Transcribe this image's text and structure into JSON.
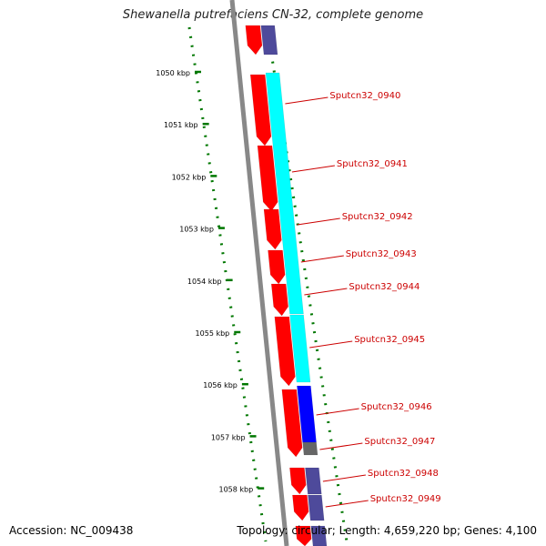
{
  "title": "Shewanella putrefaciens CN-32, complete genome",
  "accession_label": "Accession: NC_009438",
  "topology_label": "Topology: circular; Length: 4,659,220 bp; Genes: 4,100",
  "scale": {
    "unit": "kbp",
    "labels": [
      "1050 kbp",
      "1051 kbp",
      "1052 kbp",
      "1053 kbp",
      "1054 kbp",
      "1055 kbp",
      "1056 kbp",
      "1057 kbp",
      "1058 kbp"
    ]
  },
  "genes": [
    {
      "name": "Sputcn32_0940"
    },
    {
      "name": "Sputcn32_0941"
    },
    {
      "name": "Sputcn32_0942"
    },
    {
      "name": "Sputcn32_0943"
    },
    {
      "name": "Sputcn32_0944"
    },
    {
      "name": "Sputcn32_0945"
    },
    {
      "name": "Sputcn32_0946"
    },
    {
      "name": "Sputcn32_0947"
    },
    {
      "name": "Sputcn32_0948"
    },
    {
      "name": "Sputcn32_0949"
    }
  ],
  "colors": {
    "cds": "#ff0000",
    "cog_cyan": "#00ffff",
    "cog_blue": "#0000ff",
    "cog_gray": "#666666",
    "cog_purple": "#4e4a9b",
    "label": "#cc0000",
    "tick": "#007700",
    "backbone": "#888888"
  }
}
